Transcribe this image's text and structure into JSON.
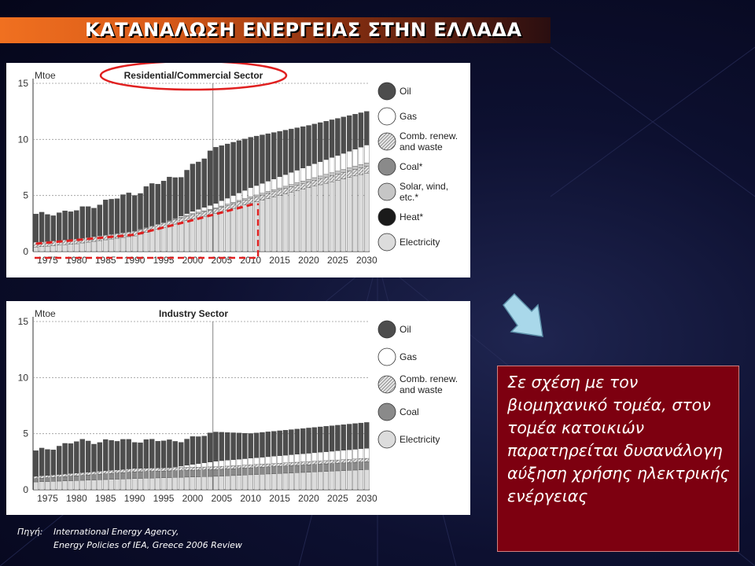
{
  "slide_title": "ΚΑΤΑΝΑΛΩΣΗ ΕΝΕΡΓΕΙΑΣ ΣΤΗΝ ΕΛΛΑΔΑ",
  "note_text": "Σε σχέση με τον βιομηχανικό τομέα, στον τομέα κατοικιών παρατηρείται δυσανάλογη αύξηση χρήσης ηλεκτρικής ενέργειας",
  "source": {
    "label": "Πηγή:",
    "line1": "International Energy Agency,",
    "line2": "Energy Policies of IEA, Greece 2006 Review"
  },
  "colors": {
    "oil": "#4d4d4d",
    "gas": "#ffffff",
    "renew": "#bdbdbd",
    "coal": "#8a8a8a",
    "solar": "#c6c6c6",
    "heat": "#1a1a1a",
    "electricity": "#dcdcdc",
    "highlight": "#e02020",
    "note_bg": "#7d0010"
  },
  "chart_data": [
    {
      "type": "bar",
      "stacked": true,
      "title": "Residential/Commercial Sector",
      "ylabel": "Mtoe",
      "ylim": [
        0,
        15
      ],
      "yticks": [
        "0",
        "5",
        "10",
        "15"
      ],
      "xticks": [
        "1975",
        "1980",
        "1985",
        "1990",
        "1995",
        "2000",
        "2005",
        "2010",
        "2015",
        "2020",
        "2025",
        "2030"
      ],
      "x_start": 1973,
      "x_end": 2030,
      "divider_year": 2004,
      "legend": [
        "Oil",
        "Gas",
        "Comb. renew. and waste",
        "Coal*",
        "Solar, wind, etc.*",
        "Heat*",
        "Electricity"
      ],
      "legend_keys": [
        "oil",
        "gas",
        "renew",
        "coal",
        "solar",
        "heat",
        "electricity"
      ],
      "series": [
        {
          "name": "Electricity",
          "key": "electricity",
          "anchors": [
            [
              1973,
              0.4
            ],
            [
              1980,
              0.7
            ],
            [
              1990,
              1.4
            ],
            [
              2000,
              2.9
            ],
            [
              2004,
              3.4
            ],
            [
              2010,
              4.3
            ],
            [
              2020,
              5.7
            ],
            [
              2030,
              7.0
            ]
          ]
        },
        {
          "name": "Comb. renew. and waste",
          "key": "renew",
          "anchors": [
            [
              1973,
              0.45
            ],
            [
              1990,
              0.4
            ],
            [
              2004,
              0.4
            ],
            [
              2030,
              0.6
            ]
          ]
        },
        {
          "name": "Solar, wind, etc.*",
          "key": "solar",
          "anchors": [
            [
              1973,
              0.0
            ],
            [
              1990,
              0.05
            ],
            [
              2004,
              0.1
            ],
            [
              2030,
              0.3
            ]
          ]
        },
        {
          "name": "Coal*",
          "key": "coal",
          "anchors": [
            [
              1973,
              0.0
            ],
            [
              2030,
              0.0
            ]
          ]
        },
        {
          "name": "Heat*",
          "key": "heat",
          "anchors": [
            [
              1973,
              0.0
            ],
            [
              2030,
              0.0
            ]
          ]
        },
        {
          "name": "Gas",
          "key": "gas",
          "anchors": [
            [
              1973,
              0.0
            ],
            [
              1996,
              0.0
            ],
            [
              2004,
              0.4
            ],
            [
              2010,
              0.8
            ],
            [
              2020,
              1.2
            ],
            [
              2030,
              1.6
            ]
          ]
        },
        {
          "name": "Oil",
          "key": "oil",
          "anchors": [
            [
              1973,
              2.4
            ],
            [
              1980,
              2.5
            ],
            [
              1990,
              3.4
            ],
            [
              2000,
              3.9
            ],
            [
              2004,
              5.0
            ],
            [
              2010,
              4.5
            ],
            [
              2020,
              3.6
            ],
            [
              2030,
              3.0
            ]
          ]
        }
      ],
      "highlight_line": [
        [
          1973,
          0.7
        ],
        [
          1990,
          1.5
        ],
        [
          2000,
          2.8
        ],
        [
          2011,
          4.3
        ]
      ]
    },
    {
      "type": "bar",
      "stacked": true,
      "title": "Industry Sector",
      "ylabel": "Mtoe",
      "ylim": [
        0,
        15
      ],
      "yticks": [
        "0",
        "5",
        "10",
        "15"
      ],
      "xticks": [
        "1975",
        "1980",
        "1985",
        "1990",
        "1995",
        "2000",
        "2005",
        "2010",
        "2015",
        "2020",
        "2025",
        "2030"
      ],
      "x_start": 1973,
      "x_end": 2030,
      "divider_year": 2004,
      "legend": [
        "Oil",
        "Gas",
        "Comb. renew. and waste",
        "Coal",
        "Electricity"
      ],
      "legend_keys": [
        "oil",
        "gas",
        "renew",
        "coal",
        "electricity"
      ],
      "series": [
        {
          "name": "Electricity",
          "key": "electricity",
          "anchors": [
            [
              1973,
              0.7
            ],
            [
              1990,
              1.0
            ],
            [
              2004,
              1.2
            ],
            [
              2030,
              1.8
            ]
          ]
        },
        {
          "name": "Coal",
          "key": "coal",
          "anchors": [
            [
              1973,
              0.3
            ],
            [
              1990,
              0.6
            ],
            [
              2004,
              0.6
            ],
            [
              2030,
              0.7
            ]
          ]
        },
        {
          "name": "Comb. renew. and waste",
          "key": "renew",
          "anchors": [
            [
              1973,
              0.2
            ],
            [
              1990,
              0.3
            ],
            [
              2004,
              0.25
            ],
            [
              2030,
              0.3
            ]
          ]
        },
        {
          "name": "Gas",
          "key": "gas",
          "anchors": [
            [
              1973,
              0.0
            ],
            [
              1996,
              0.0
            ],
            [
              2004,
              0.5
            ],
            [
              2030,
              0.9
            ]
          ]
        },
        {
          "name": "Oil",
          "key": "oil",
          "anchors": [
            [
              1973,
              2.2
            ],
            [
              1980,
              2.8
            ],
            [
              1990,
              2.5
            ],
            [
              2000,
              2.3
            ],
            [
              2004,
              2.6
            ],
            [
              2010,
              2.2
            ],
            [
              2030,
              2.3
            ]
          ]
        }
      ]
    }
  ]
}
